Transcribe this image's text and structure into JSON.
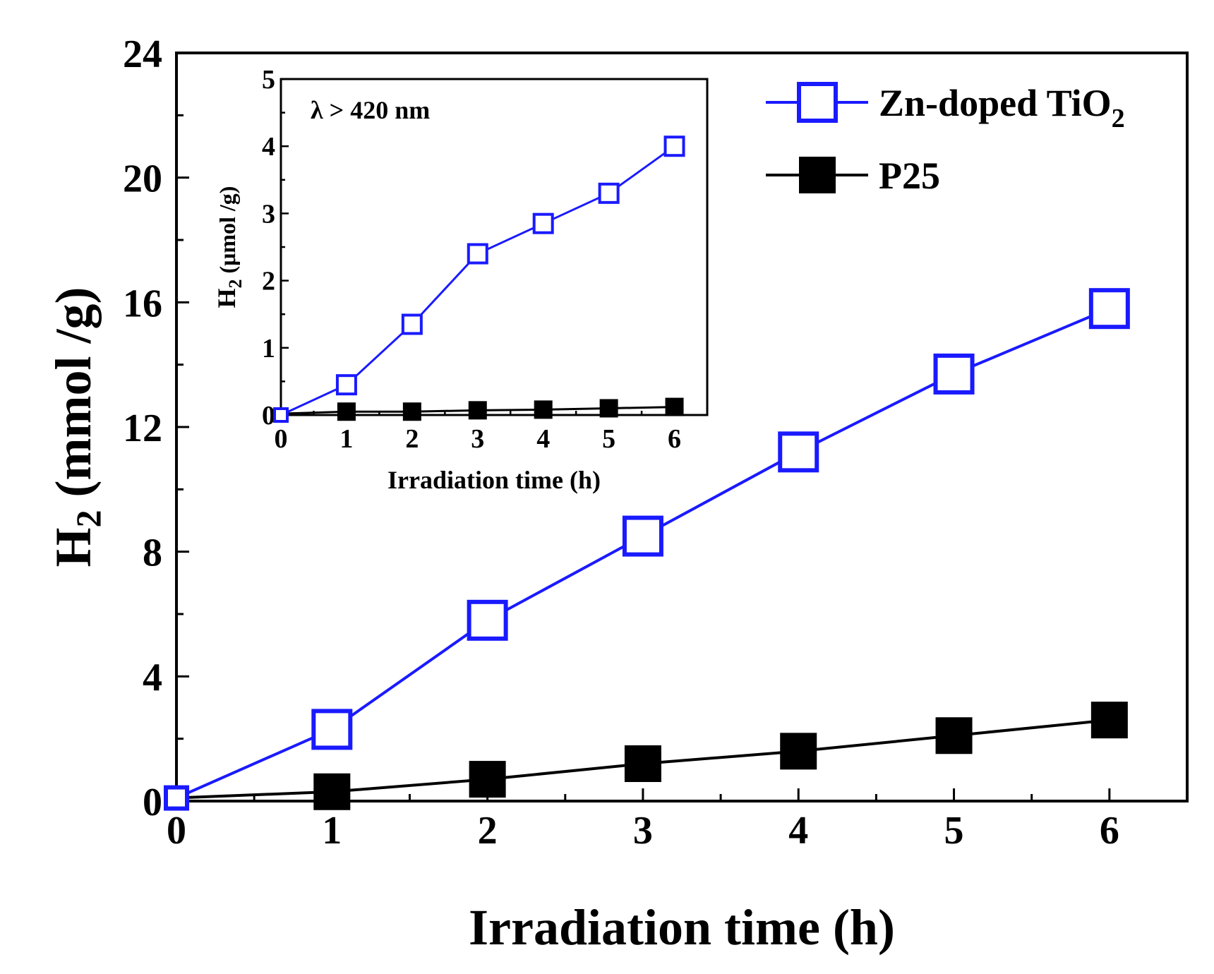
{
  "colors": {
    "zn_series": "#1a1aff",
    "p25_series": "#000000",
    "axes": "#000000",
    "background": "#ffffff"
  },
  "chart_data": [
    {
      "id": "main",
      "type": "line",
      "xlabel": "Irradiation time (h)",
      "ylabel_main": "H",
      "ylabel_sub": "2",
      "ylabel_tail": " (mmol /g)",
      "xlim": [
        0,
        6.5
      ],
      "ylim": [
        0,
        24
      ],
      "xticks": [
        0,
        1,
        2,
        3,
        4,
        5,
        6
      ],
      "yticks": [
        0,
        4,
        8,
        12,
        16,
        20,
        24
      ],
      "x_minor": 0.5,
      "y_minor": 2,
      "series": [
        {
          "name": "Zn-doped TiO2",
          "marker": "open-square",
          "x": [
            0,
            1,
            2,
            3,
            4,
            5,
            6
          ],
          "y": [
            0.1,
            2.3,
            5.8,
            8.5,
            11.2,
            13.7,
            15.8
          ]
        },
        {
          "name": "P25",
          "marker": "filled-square",
          "x": [
            0,
            1,
            2,
            3,
            4,
            5,
            6
          ],
          "y": [
            0.1,
            0.3,
            0.7,
            1.2,
            1.6,
            2.1,
            2.6
          ]
        }
      ],
      "legend": [
        {
          "label_main": "Zn-doped TiO",
          "label_sub": "2"
        },
        {
          "label_main": "P25",
          "label_sub": ""
        }
      ],
      "legend_position": "top-right"
    },
    {
      "id": "inset",
      "type": "line",
      "annotation": "λ > 420 nm",
      "xlabel": "Irradiation time (h)",
      "ylabel_main": "H",
      "ylabel_sub": "2",
      "ylabel_tail": " (μmol /g)",
      "xlim": [
        0,
        6.5
      ],
      "ylim": [
        0,
        5
      ],
      "xticks": [
        0,
        1,
        2,
        3,
        4,
        5,
        6
      ],
      "yticks": [
        0,
        1,
        2,
        3,
        4,
        5
      ],
      "x_minor": 0.5,
      "y_minor": 0.5,
      "series": [
        {
          "name": "Zn-doped TiO2",
          "marker": "open-square",
          "x": [
            0,
            1,
            2,
            3,
            4,
            5,
            6
          ],
          "y": [
            0,
            0.45,
            1.35,
            2.4,
            2.85,
            3.3,
            4.0
          ]
        },
        {
          "name": "P25",
          "marker": "filled-square",
          "x": [
            0,
            1,
            2,
            3,
            4,
            5,
            6
          ],
          "y": [
            0.02,
            0.05,
            0.05,
            0.07,
            0.08,
            0.1,
            0.12
          ]
        }
      ]
    }
  ]
}
